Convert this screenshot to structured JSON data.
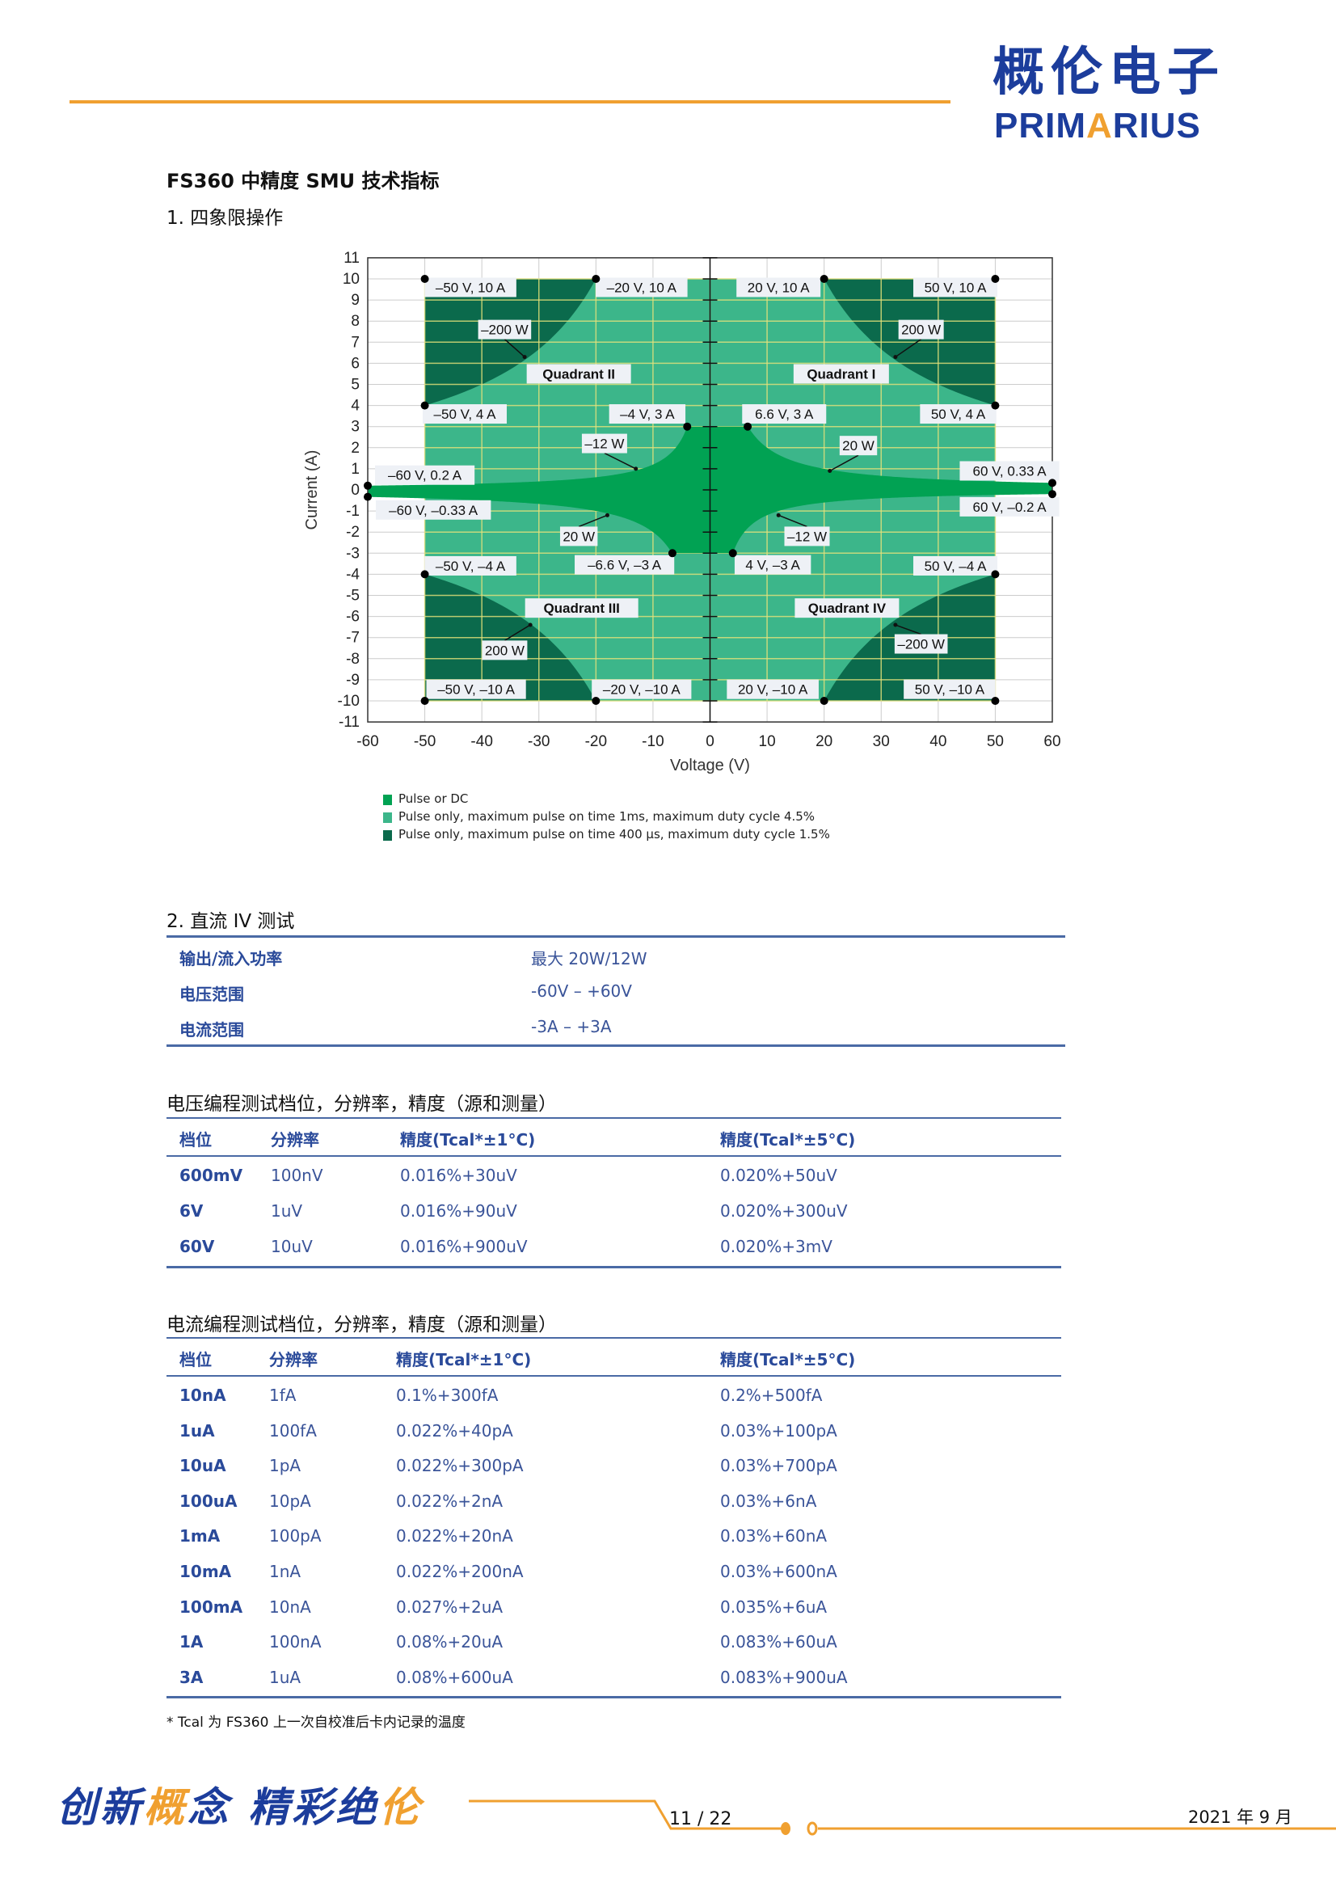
{
  "header": {
    "logo_cn": "概伦电子",
    "logo_en_prefix": "PRIM",
    "logo_en_accent": "A",
    "logo_en_suffix": "RIUS",
    "accent_color": "#f0a030",
    "brand_color": "#1c3d9c"
  },
  "title": "FS360  中精度 SMU  技术指标",
  "section1": "1. 四象限操作",
  "chart_data": {
    "type": "area",
    "xlabel": "Voltage (V)",
    "ylabel": "Current (A)",
    "xlim": [
      -60,
      60
    ],
    "ylim": [
      -11,
      11
    ],
    "xticks": [
      -60,
      -50,
      -40,
      -30,
      -20,
      -10,
      0,
      10,
      20,
      30,
      40,
      50,
      60
    ],
    "yticks": [
      -11,
      -10,
      -9,
      -8,
      -7,
      -6,
      -5,
      -4,
      -3,
      -2,
      -1,
      0,
      1,
      2,
      3,
      4,
      5,
      6,
      7,
      8,
      9,
      10,
      11
    ],
    "grid": true,
    "colors": {
      "dc": "#01a253",
      "pulse_1ms": "#3cb68a",
      "pulse_400us": "#0b6a4c"
    },
    "regions": {
      "pulse_1ms_box": {
        "v": [
          -50,
          50
        ],
        "i": [
          -10,
          10
        ]
      },
      "pulse_400us_power_limit_W": 200,
      "dc_source_power_W": 20,
      "dc_sink_power_W": 12,
      "dc_current_limit_A": 3,
      "dc_voltage_limit_V": 60
    },
    "legend": [
      {
        "label": "Pulse or DC",
        "color": "#01a253"
      },
      {
        "label": "Pulse only, maximum pulse on time 1ms, maximum duty cycle 4.5%",
        "color": "#3cb68a"
      },
      {
        "label": "Pulse only, maximum pulse on time 400 µs, maximum duty cycle 1.5%",
        "color": "#0b6a4c"
      }
    ],
    "legend_position": "bottom-left",
    "annotations": [
      {
        "text": "–50 V, 10 A",
        "point": [
          -50,
          10
        ]
      },
      {
        "text": "–20 V, 10 A",
        "point": [
          -20,
          10
        ]
      },
      {
        "text": "20 V, 10 A",
        "point": [
          20,
          10
        ]
      },
      {
        "text": "50 V, 10 A",
        "point": [
          50,
          10
        ]
      },
      {
        "text": "–200 W",
        "point": null
      },
      {
        "text": "200 W",
        "point": null
      },
      {
        "text": "Quadrant II",
        "point": null
      },
      {
        "text": "Quadrant I",
        "point": null
      },
      {
        "text": "–50 V, 4 A",
        "point": [
          -50,
          4
        ]
      },
      {
        "text": "–4 V, 3 A",
        "point": [
          -4,
          3
        ]
      },
      {
        "text": "6.6 V, 3 A",
        "point": [
          6.6,
          3
        ]
      },
      {
        "text": "50 V, 4 A",
        "point": [
          50,
          4
        ]
      },
      {
        "text": "–12 W",
        "point": null
      },
      {
        "text": "20 W",
        "point": null
      },
      {
        "text": "–60 V, 0.2 A",
        "point": [
          -60,
          0.2
        ]
      },
      {
        "text": "60 V, 0.33 A",
        "point": [
          60,
          0.33
        ]
      },
      {
        "text": "–60 V, –0.33 A",
        "point": [
          -60,
          -0.33
        ]
      },
      {
        "text": "60 V, –0.2 A",
        "point": [
          60,
          -0.2
        ]
      },
      {
        "text": "20 W",
        "point": null
      },
      {
        "text": "–12 W",
        "point": null
      },
      {
        "text": "–6.6 V, –3 A",
        "point": [
          -6.6,
          -3
        ]
      },
      {
        "text": "4 V, –3 A",
        "point": [
          4,
          -3
        ]
      },
      {
        "text": "–50 V, –4 A",
        "point": [
          -50,
          -4
        ]
      },
      {
        "text": "50 V, –4 A",
        "point": [
          50,
          -4
        ]
      },
      {
        "text": "Quadrant III",
        "point": null
      },
      {
        "text": "Quadrant IV",
        "point": null
      },
      {
        "text": "200 W",
        "point": null
      },
      {
        "text": "–200 W",
        "point": null
      },
      {
        "text": "–50 V, –10 A",
        "point": [
          -50,
          -10
        ]
      },
      {
        "text": "–20 V, –10 A",
        "point": [
          -20,
          -10
        ]
      },
      {
        "text": "20 V, –10 A",
        "point": [
          20,
          -10
        ]
      },
      {
        "text": "50 V, –10 A",
        "point": [
          50,
          -10
        ]
      }
    ]
  },
  "section2": {
    "title": "2. 直流 IV 测试",
    "rows": [
      {
        "label": "输出/流入功率",
        "value": "最大 20W/12W"
      },
      {
        "label": "电压范围",
        "value": "-60V – +60V"
      },
      {
        "label": "电流范围",
        "value": "-3A – +3A"
      }
    ]
  },
  "voltage_table": {
    "title": "电压编程测试档位，分辨率，精度（源和测量）",
    "headers": [
      "档位",
      "分辨率",
      "精度(Tcal*±1°C)",
      "精度(Tcal*±5°C)"
    ],
    "rows": [
      [
        "600mV",
        "100nV",
        "0.016%+30uV",
        "0.020%+50uV"
      ],
      [
        "6V",
        "1uV",
        "0.016%+90uV",
        "0.020%+300uV"
      ],
      [
        "60V",
        "10uV",
        "0.016%+900uV",
        "0.020%+3mV"
      ]
    ]
  },
  "current_table": {
    "title": "电流编程测试档位，分辨率，精度（源和测量）",
    "headers": [
      "档位",
      "分辨率",
      "精度(Tcal*±1°C)",
      "精度(Tcal*±5°C)"
    ],
    "rows": [
      [
        "10nA",
        "1fA",
        "0.1%+300fA",
        "0.2%+500fA"
      ],
      [
        "1uA",
        "100fA",
        "0.022%+40pA",
        "0.03%+100pA"
      ],
      [
        "10uA",
        "1pA",
        "0.022%+300pA",
        "0.03%+700pA"
      ],
      [
        "100uA",
        "10pA",
        "0.022%+2nA",
        "0.03%+6nA"
      ],
      [
        "1mA",
        "100pA",
        "0.022%+20nA",
        "0.03%+60nA"
      ],
      [
        "10mA",
        "1nA",
        "0.022%+200nA",
        "0.03%+600nA"
      ],
      [
        "100mA",
        "10nA",
        "0.027%+2uA",
        "0.035%+6uA"
      ],
      [
        "1A",
        "100nA",
        "0.08%+20uA",
        "0.083%+60uA"
      ],
      [
        "3A",
        "1uA",
        "0.08%+600uA",
        "0.083%+900uA"
      ]
    ]
  },
  "footnote": "*   Tcal 为 FS360 上一次自校准后卡内记录的温度",
  "footer": {
    "slogan": [
      {
        "text": "创新",
        "accent": false
      },
      {
        "text": "概",
        "accent": true
      },
      {
        "text": "念  精彩绝",
        "accent": false
      },
      {
        "text": "伦",
        "accent": true
      }
    ],
    "page": "11 / 22",
    "date": "2021 年 9 月"
  }
}
